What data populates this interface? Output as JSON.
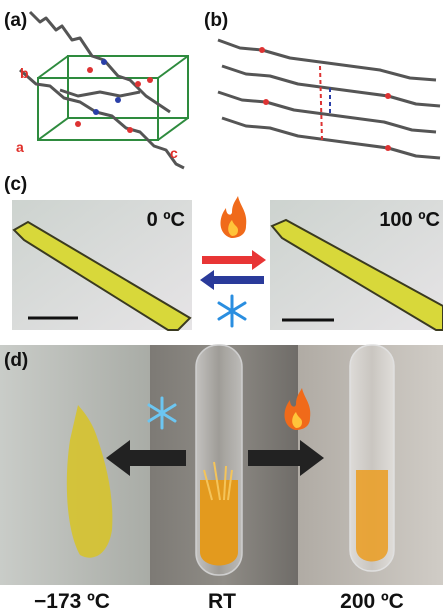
{
  "panels": {
    "a": {
      "label": "(a)",
      "axes": [
        "a",
        "b",
        "c"
      ]
    },
    "b": {
      "label": "(b)"
    },
    "c": {
      "label": "(c)",
      "left_temp": "0 ºC",
      "right_temp": "100 ºC"
    },
    "d": {
      "label": "(d)",
      "captions": [
        "−173 ºC",
        "RT",
        "200 ºC"
      ]
    }
  }
}
